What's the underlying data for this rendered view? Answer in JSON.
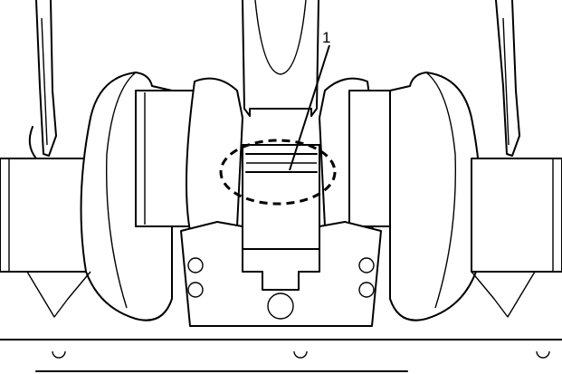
{
  "callout": {
    "number": "1",
    "highlight_style": "dashed-ellipse"
  },
  "icons": [
    "crankshaft-illustration",
    "connecting-rod",
    "dashed-highlight-ellipse",
    "leader-line"
  ]
}
